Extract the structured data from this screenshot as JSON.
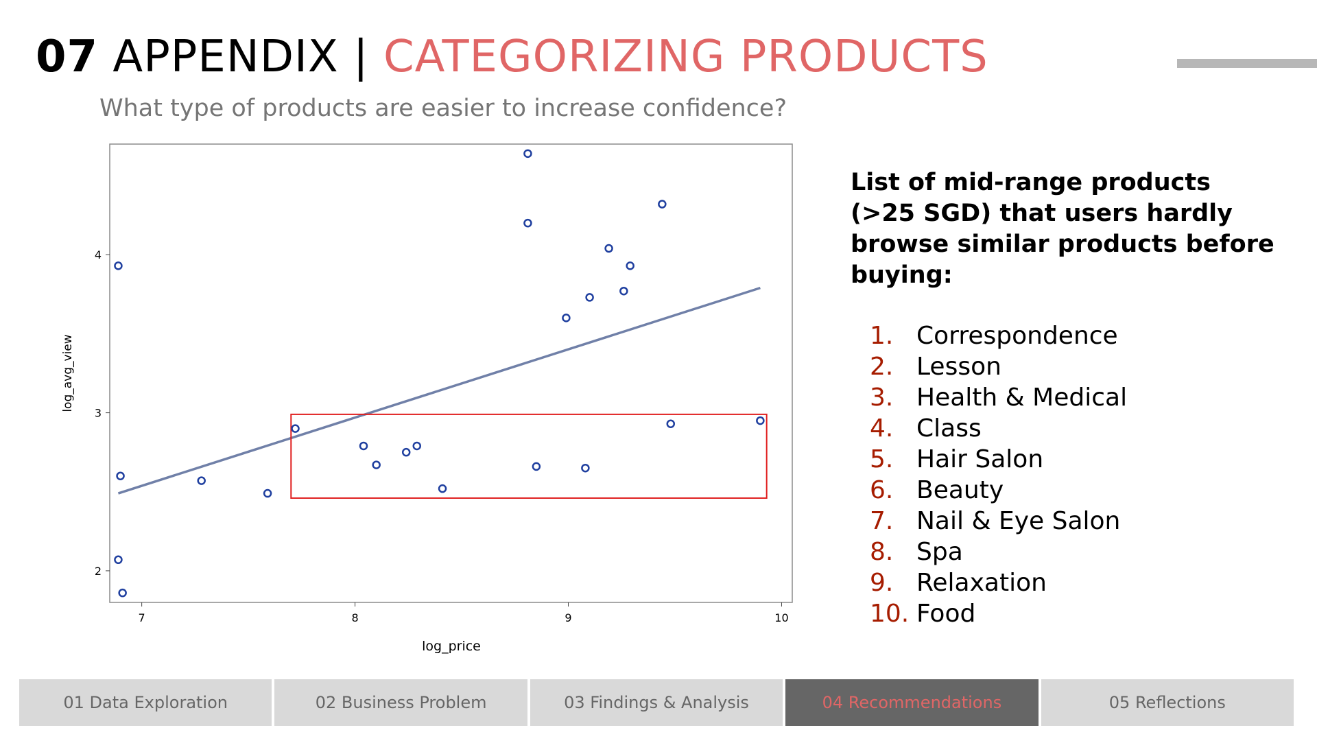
{
  "header": {
    "number": "07",
    "title_main": "APPENDIX |",
    "title_accent": "CATEGORIZING PRODUCTS",
    "subtitle": "What type of products are easier to increase confidence?"
  },
  "colors": {
    "accent": "#e06666",
    "list_number": "#a61c00",
    "point": "#1f3f9f",
    "trend": "#7080a8",
    "highlight_box": "#e02020",
    "nav_active_bg": "#666666",
    "nav_bg": "#d9d9d9"
  },
  "chart_data": {
    "type": "scatter",
    "xlabel": "log_price",
    "ylabel": "log_avg_view",
    "xlim": [
      6.85,
      10.05
    ],
    "ylim": [
      1.8,
      4.7
    ],
    "xticks": [
      7,
      8,
      9,
      10
    ],
    "yticks": [
      2,
      3,
      4
    ],
    "grid": false,
    "points": [
      {
        "x": 8.81,
        "y": 4.64
      },
      {
        "x": 9.44,
        "y": 4.32
      },
      {
        "x": 8.81,
        "y": 4.2
      },
      {
        "x": 9.19,
        "y": 4.04
      },
      {
        "x": 6.89,
        "y": 3.93
      },
      {
        "x": 9.29,
        "y": 3.93
      },
      {
        "x": 9.26,
        "y": 3.77
      },
      {
        "x": 9.1,
        "y": 3.73
      },
      {
        "x": 8.99,
        "y": 3.6
      },
      {
        "x": 9.48,
        "y": 2.93
      },
      {
        "x": 9.9,
        "y": 2.95
      },
      {
        "x": 7.72,
        "y": 2.9
      },
      {
        "x": 8.04,
        "y": 2.79
      },
      {
        "x": 8.29,
        "y": 2.79
      },
      {
        "x": 8.24,
        "y": 2.75
      },
      {
        "x": 8.1,
        "y": 2.67
      },
      {
        "x": 8.85,
        "y": 2.66
      },
      {
        "x": 9.08,
        "y": 2.65
      },
      {
        "x": 6.9,
        "y": 2.6
      },
      {
        "x": 7.28,
        "y": 2.57
      },
      {
        "x": 8.41,
        "y": 2.52
      },
      {
        "x": 7.59,
        "y": 2.49
      },
      {
        "x": 6.89,
        "y": 2.07
      },
      {
        "x": 6.91,
        "y": 1.86
      }
    ],
    "trendline": {
      "x": [
        6.89,
        9.9
      ],
      "y": [
        2.49,
        3.79
      ]
    },
    "highlight_region": {
      "x": [
        7.7,
        9.93
      ],
      "y": [
        2.46,
        2.99
      ]
    }
  },
  "side_panel": {
    "heading": "List of mid-range products (>25 SGD) that users hardly browse similar products before buying:",
    "items": [
      {
        "num": "1.",
        "label": "Correspondence"
      },
      {
        "num": "2.",
        "label": "Lesson"
      },
      {
        "num": "3.",
        "label": "Health & Medical"
      },
      {
        "num": "4.",
        "label": "Class"
      },
      {
        "num": "5.",
        "label": "Hair Salon"
      },
      {
        "num": "6.",
        "label": "Beauty"
      },
      {
        "num": "7.",
        "label": "Nail & Eye Salon"
      },
      {
        "num": "8.",
        "label": "Spa"
      },
      {
        "num": "9.",
        "label": "Relaxation"
      },
      {
        "num": "10.",
        "label": "Food"
      }
    ]
  },
  "nav": {
    "tabs": [
      {
        "label": "01 Data Exploration",
        "active": false
      },
      {
        "label": "02 Business Problem",
        "active": false
      },
      {
        "label": "03 Findings & Analysis",
        "active": false
      },
      {
        "label": "04 Recommendations",
        "active": true
      },
      {
        "label": "05 Reflections",
        "active": false
      }
    ]
  }
}
